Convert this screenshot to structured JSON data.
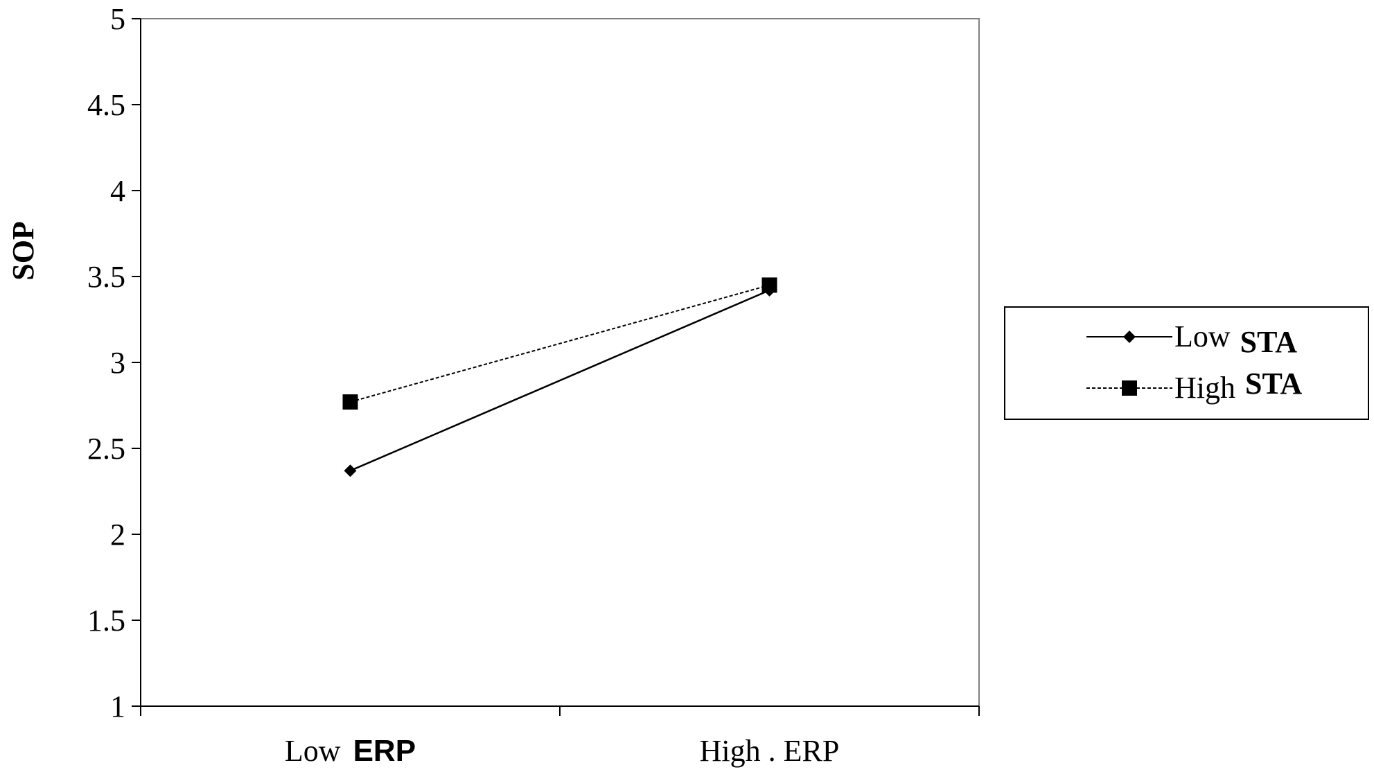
{
  "chart_data": {
    "type": "line",
    "ylabel": "SOP",
    "ylim": [
      1,
      5
    ],
    "yticks": [
      "1",
      "1.5",
      "2",
      "2.5",
      "3",
      "3.5",
      "4",
      "4.5",
      "5"
    ],
    "categories": [
      {
        "text": "Low",
        "bold": "ERP"
      },
      {
        "text": "High . ERP",
        "bold": ""
      }
    ],
    "series": [
      {
        "name": "Low",
        "name_bold": "STA",
        "marker": "diamond",
        "line": "solid",
        "values": [
          2.37,
          3.42
        ]
      },
      {
        "name": "High",
        "name_bold": "STA",
        "marker": "square",
        "line": "dashed",
        "values": [
          2.77,
          3.45
        ]
      }
    ],
    "legend_position": "right",
    "grid": false
  },
  "colors": {
    "line": "#000000",
    "background": "#ffffff"
  }
}
